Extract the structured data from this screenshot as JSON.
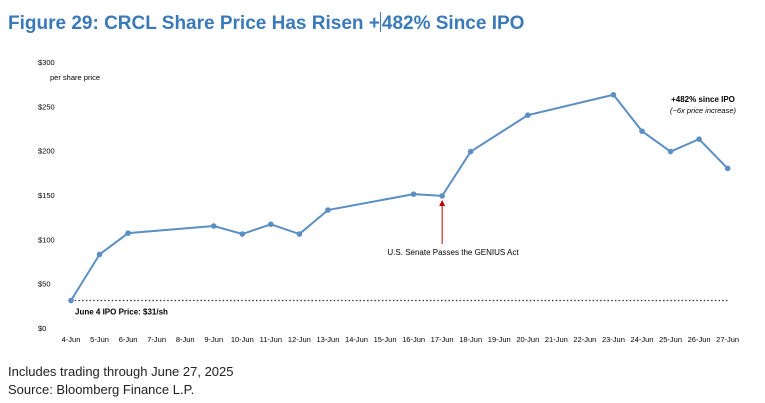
{
  "figure": {
    "title_part1": "Figure 29: CRCL Share Price Has Risen +",
    "title_part2": "482% Since IPO"
  },
  "chart_data": {
    "type": "line",
    "categories": [
      "4-Jun",
      "5-Jun",
      "6-Jun",
      "7-Jun",
      "8-Jun",
      "9-Jun",
      "10-Jun",
      "11-Jun",
      "12-Jun",
      "13-Jun",
      "14-Jun",
      "15-Jun",
      "16-Jun",
      "17-Jun",
      "18-Jun",
      "19-Jun",
      "20-Jun",
      "21-Jun",
      "22-Jun",
      "23-Jun",
      "24-Jun",
      "25-Jun",
      "26-Jun",
      "27-Jun"
    ],
    "points": [
      {
        "x": "4-Jun",
        "y": 31
      },
      {
        "x": "5-Jun",
        "y": 83
      },
      {
        "x": "6-Jun",
        "y": 107
      },
      {
        "x": "9-Jun",
        "y": 115
      },
      {
        "x": "10-Jun",
        "y": 106
      },
      {
        "x": "11-Jun",
        "y": 117
      },
      {
        "x": "12-Jun",
        "y": 106
      },
      {
        "x": "13-Jun",
        "y": 133
      },
      {
        "x": "16-Jun",
        "y": 151
      },
      {
        "x": "17-Jun",
        "y": 149
      },
      {
        "x": "18-Jun",
        "y": 199
      },
      {
        "x": "20-Jun",
        "y": 240
      },
      {
        "x": "23-Jun",
        "y": 263
      },
      {
        "x": "24-Jun",
        "y": 222
      },
      {
        "x": "25-Jun",
        "y": 199
      },
      {
        "x": "26-Jun",
        "y": 213
      },
      {
        "x": "27-Jun",
        "y": 180
      }
    ],
    "ylim": [
      0,
      300
    ],
    "yticks": [
      "$0",
      "$50",
      "$100",
      "$150",
      "$200",
      "$250",
      "$300"
    ],
    "ytick_values": [
      0,
      50,
      100,
      150,
      200,
      250,
      300
    ],
    "ylabel": "per share price",
    "grid": false,
    "line_color": "#5b8fc4",
    "reference_line": {
      "y": 31,
      "label": "June 4 IPO Price: $31/sh"
    },
    "annotations": {
      "senate": {
        "x": "17-Jun",
        "text": "U.S. Senate Passes the GENIUS Act",
        "color": "#c00000"
      },
      "gain_main": "+482% since IPO",
      "gain_sub": "(~6x price increase)"
    }
  },
  "footnotes": {
    "note": "Includes trading through June 27, 2025",
    "source": "Source: Bloomberg Finance L.P."
  }
}
